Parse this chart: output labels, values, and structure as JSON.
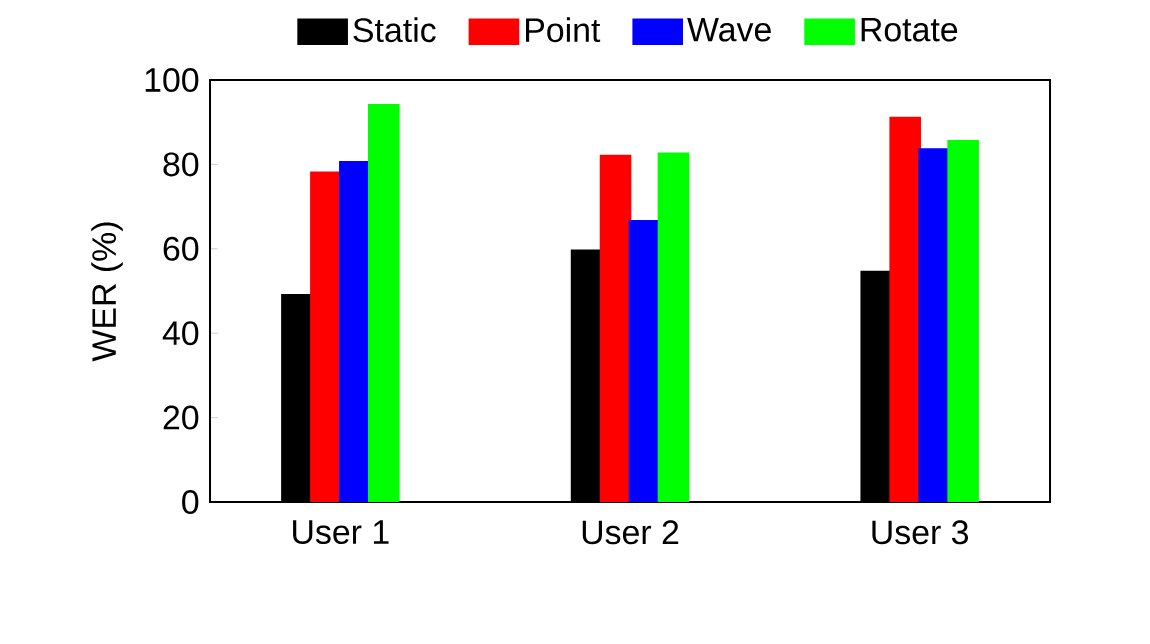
{
  "chart_data": {
    "type": "bar",
    "ylabel": "WER (%)",
    "categories": [
      "User 1",
      "User 2",
      "User 3"
    ],
    "series": [
      {
        "name": "Static",
        "color": "#000000",
        "values": [
          49,
          59.5,
          54.5
        ]
      },
      {
        "name": "Point",
        "color": "#ff0000",
        "values": [
          78,
          82,
          91
        ]
      },
      {
        "name": "Wave",
        "color": "#0000ff",
        "values": [
          80.5,
          66.5,
          83.5
        ]
      },
      {
        "name": "Rotate",
        "color": "#00ff00",
        "values": [
          94,
          82.5,
          85.5
        ]
      }
    ],
    "ylim": [
      0,
      100
    ],
    "yticks": [
      0,
      20,
      40,
      60,
      80,
      100
    ],
    "grid": false,
    "legend": "top"
  }
}
